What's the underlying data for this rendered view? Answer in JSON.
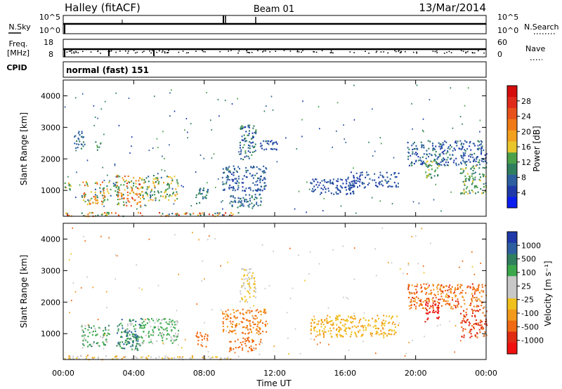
{
  "header": {
    "station": "Halley (fitACF)",
    "beam": "Beam 01",
    "date": "13/Mar/2014"
  },
  "params": {
    "nsky_label": "N.Sky",
    "nsearch_label": "N.Search",
    "freq_label_1": "Freq.",
    "freq_label_2": "[MHz]",
    "nave_label": "Nave",
    "cpid_label": "CPID",
    "cpid_text": "normal (fast) 151",
    "noise_ticks_left": [
      "10^5",
      "10^0"
    ],
    "noise_ticks_right": [
      "10^5",
      "10^0"
    ],
    "freq_ticks": [
      "18",
      "8"
    ],
    "nave_ticks": [
      "60",
      "0"
    ]
  },
  "axes": {
    "ylabel": "Slant Range [km]",
    "xlabel": "Time UT",
    "y_ticks": [
      "1000",
      "2000",
      "3000",
      "4000"
    ],
    "x_ticks": [
      "00:00",
      "04:00",
      "08:00",
      "12:00",
      "16:00",
      "20:00",
      "00:00"
    ]
  },
  "power_colorbar": {
    "label": "Power [dB]",
    "ticks": [
      "4",
      "8",
      "12",
      "16",
      "20",
      "24",
      "28"
    ],
    "colors": [
      "#0a1ef0",
      "#1f3aa8",
      "#2d5fa0",
      "#2f7f5f",
      "#4ba04a",
      "#e8c62c",
      "#f2a01e",
      "#ef7a16",
      "#e8511a",
      "#e02a1a",
      "#d40c0c"
    ]
  },
  "velocity_colorbar": {
    "label": "Velocity [m s⁻¹]",
    "ticks": [
      "1000",
      "500",
      "100",
      "25",
      "-25",
      "-100",
      "-500",
      "-1000"
    ],
    "colors": [
      "#1f3aa8",
      "#2d5fa0",
      "#2f7f5f",
      "#3aa84a",
      "#c8c8c8",
      "#c8c8c8",
      "#f0c01c",
      "#f29a1c",
      "#ef6a12",
      "#e02a12",
      "#f01010"
    ]
  },
  "chart_data": [
    {
      "type": "heatmap",
      "name": "Power",
      "x_range_hours": [
        0,
        24
      ],
      "y_range_km": [
        180,
        4500
      ],
      "regions": [
        {
          "t": [
            0.0,
            0.4
          ],
          "r": [
            1000,
            1300
          ],
          "v": [
            8,
            20
          ]
        },
        {
          "t": [
            0.6,
            1.2
          ],
          "r": [
            2300,
            2900
          ],
          "v": [
            6,
            10
          ]
        },
        {
          "t": [
            1.8,
            2.1
          ],
          "r": [
            2300,
            2600
          ],
          "v": [
            8,
            14
          ]
        },
        {
          "t": [
            1.0,
            2.6
          ],
          "r": [
            550,
            1300
          ],
          "v": [
            8,
            26
          ]
        },
        {
          "t": [
            2.6,
            3.1
          ],
          "r": [
            800,
            1500
          ],
          "v": [
            6,
            14
          ]
        },
        {
          "t": [
            3.0,
            4.4
          ],
          "r": [
            500,
            1500
          ],
          "v": [
            10,
            28
          ]
        },
        {
          "t": [
            4.4,
            6.5
          ],
          "r": [
            700,
            1500
          ],
          "v": [
            8,
            20
          ]
        },
        {
          "t": [
            7.5,
            8.2
          ],
          "r": [
            600,
            1100
          ],
          "v": [
            6,
            12
          ]
        },
        {
          "t": [
            9.4,
            11.2
          ],
          "r": [
            450,
            900
          ],
          "v": [
            6,
            10
          ]
        },
        {
          "t": [
            9.0,
            11.5
          ],
          "r": [
            1000,
            1800
          ],
          "v": [
            4,
            9
          ]
        },
        {
          "t": [
            10.0,
            10.9
          ],
          "r": [
            2000,
            3100
          ],
          "v": [
            4,
            14
          ]
        },
        {
          "t": [
            11.0,
            12.3
          ],
          "r": [
            2300,
            2600
          ],
          "v": [
            4,
            8
          ]
        },
        {
          "t": [
            14.0,
            16.5
          ],
          "r": [
            900,
            1400
          ],
          "v": [
            4,
            8
          ]
        },
        {
          "t": [
            16.0,
            19.0
          ],
          "r": [
            1100,
            1600
          ],
          "v": [
            4,
            8
          ]
        },
        {
          "t": [
            19.5,
            24.0
          ],
          "r": [
            1800,
            2600
          ],
          "v": [
            4,
            10
          ]
        },
        {
          "t": [
            20.5,
            21.3
          ],
          "r": [
            1400,
            2000
          ],
          "v": [
            10,
            16
          ]
        },
        {
          "t": [
            22.5,
            24.0
          ],
          "r": [
            900,
            1800
          ],
          "v": [
            8,
            16
          ]
        },
        {
          "t": [
            0.0,
            10.0
          ],
          "r": [
            200,
            320
          ],
          "v": [
            8,
            28
          ]
        }
      ]
    },
    {
      "type": "heatmap",
      "name": "Velocity",
      "x_range_hours": [
        0,
        24
      ],
      "y_range_km": [
        180,
        4500
      ],
      "regions": [
        {
          "t": [
            1.0,
            2.6
          ],
          "r": [
            550,
            1300
          ],
          "v": [
            100,
            600
          ]
        },
        {
          "t": [
            3.0,
            4.4
          ],
          "r": [
            500,
            1500
          ],
          "v": [
            100,
            900
          ]
        },
        {
          "t": [
            3.6,
            4.2
          ],
          "r": [
            600,
            1100
          ],
          "v": [
            500,
            1000
          ]
        },
        {
          "t": [
            4.4,
            6.5
          ],
          "r": [
            700,
            1500
          ],
          "v": [
            100,
            500
          ]
        },
        {
          "t": [
            7.5,
            8.2
          ],
          "r": [
            600,
            1100
          ],
          "v": [
            -200,
            -100
          ]
        },
        {
          "t": [
            9.4,
            11.2
          ],
          "r": [
            450,
            900
          ],
          "v": [
            -200,
            -100
          ]
        },
        {
          "t": [
            9.0,
            11.5
          ],
          "r": [
            1000,
            1800
          ],
          "v": [
            -150,
            -60
          ]
        },
        {
          "t": [
            10.0,
            10.9
          ],
          "r": [
            2000,
            3100
          ],
          "v": [
            -20,
            60
          ]
        },
        {
          "t": [
            14.0,
            19.0
          ],
          "r": [
            900,
            1600
          ],
          "v": [
            -60,
            20
          ]
        },
        {
          "t": [
            19.5,
            24.0
          ],
          "r": [
            1800,
            2600
          ],
          "v": [
            -300,
            -20
          ]
        },
        {
          "t": [
            20.5,
            21.3
          ],
          "r": [
            1400,
            2000
          ],
          "v": [
            -900,
            -300
          ]
        },
        {
          "t": [
            22.5,
            24.0
          ],
          "r": [
            900,
            1800
          ],
          "v": [
            -500,
            -100
          ]
        },
        {
          "t": [
            0.0,
            10.0
          ],
          "r": [
            200,
            320
          ],
          "v": [
            -50,
            100
          ]
        }
      ]
    }
  ]
}
